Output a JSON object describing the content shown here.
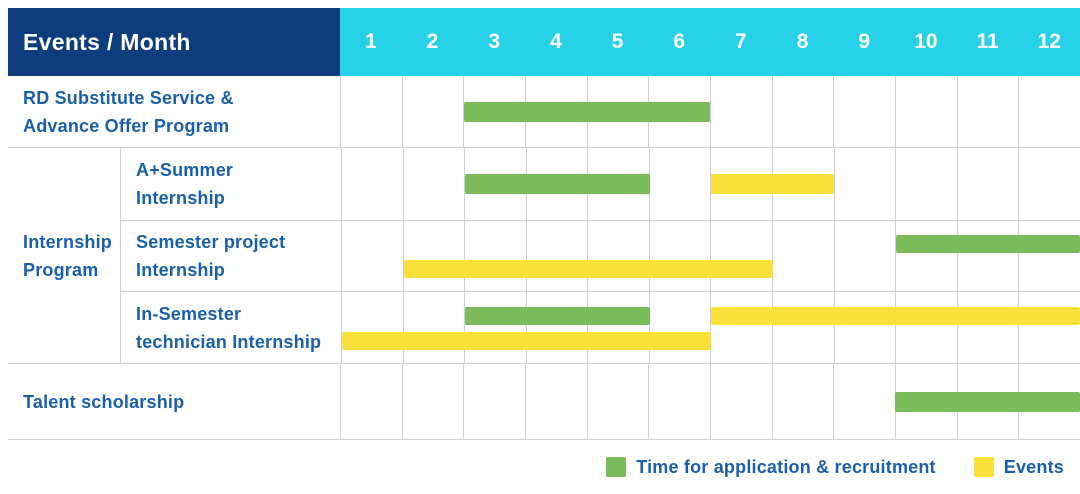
{
  "header": {
    "title": "Events / Month",
    "months": [
      "1",
      "2",
      "3",
      "4",
      "5",
      "6",
      "7",
      "8",
      "9",
      "10",
      "11",
      "12"
    ]
  },
  "colors": {
    "navy": "#0d3d7c",
    "cyan": "#27d1e7",
    "blue": "#1a5fa9",
    "grid": "#cbd0d4",
    "green": "#7bbb59",
    "yellow": "#f8e13b"
  },
  "chart_data": {
    "type": "gantt",
    "title": "Events / Month",
    "x_unit": "month",
    "x_ticks": [
      1,
      2,
      3,
      4,
      5,
      6,
      7,
      8,
      9,
      10,
      11,
      12
    ],
    "series": {
      "recruitment": {
        "label": "Time for application & recruitment",
        "color": "#7bbb59"
      },
      "event": {
        "label": "Events",
        "color": "#f8e13b"
      }
    },
    "rows": [
      {
        "kind": "simple",
        "label_lines": [
          "RD Substitute Service &",
          "Advance Offer Program"
        ],
        "bars": [
          {
            "series": "recruitment",
            "start_month": 3,
            "end_month": 6,
            "line": "center"
          }
        ]
      },
      {
        "kind": "group",
        "group_lines": [
          "Internship",
          "Program"
        ],
        "subrows": [
          {
            "label_lines": [
              "A+Summer",
              "Internship"
            ],
            "bars": [
              {
                "series": "recruitment",
                "start_month": 3,
                "end_month": 5,
                "line": "center"
              },
              {
                "series": "event",
                "start_month": 7,
                "end_month": 8,
                "line": "center"
              }
            ]
          },
          {
            "label_lines": [
              "Semester project",
              "Internship"
            ],
            "bars": [
              {
                "series": "recruitment",
                "start_month": 10,
                "end_month": 12,
                "line": "top"
              },
              {
                "series": "event",
                "start_month": 2,
                "end_month": 7,
                "line": "bottom"
              }
            ]
          },
          {
            "label_lines": [
              "In-Semester",
              "technician Internship"
            ],
            "bars": [
              {
                "series": "recruitment",
                "start_month": 3,
                "end_month": 5,
                "line": "top"
              },
              {
                "series": "event",
                "start_month": 7,
                "end_month": 12,
                "line": "top"
              },
              {
                "series": "event",
                "start_month": 1,
                "end_month": 6,
                "line": "bottom"
              }
            ]
          }
        ]
      },
      {
        "kind": "simple",
        "label_lines": [
          "Talent scholarship"
        ],
        "bars": [
          {
            "series": "recruitment",
            "start_month": 10,
            "end_month": 12,
            "line": "center"
          }
        ]
      }
    ]
  },
  "legend": [
    {
      "series": "recruitment"
    },
    {
      "series": "event"
    }
  ]
}
